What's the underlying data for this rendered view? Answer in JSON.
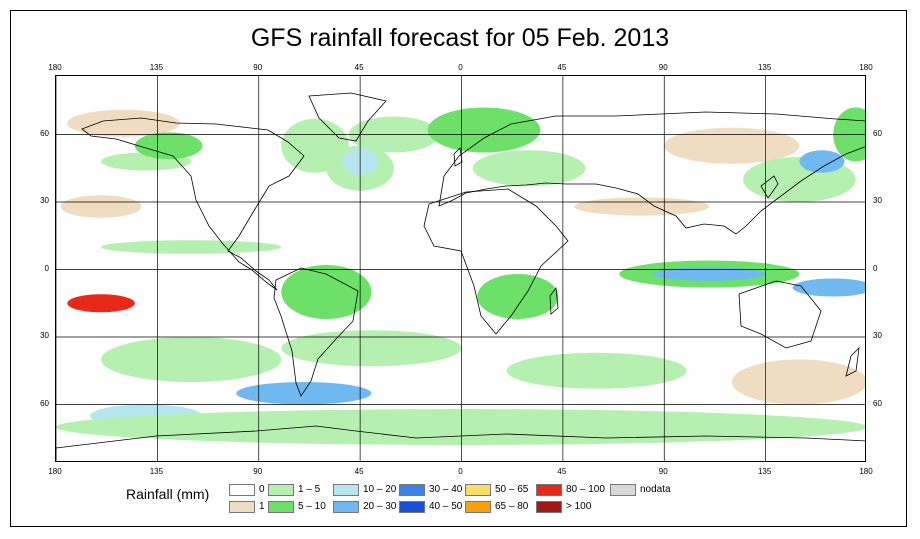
{
  "title": "GFS rainfall forecast for 05 Feb. 2013",
  "colors": {
    "land_outline": "#000000",
    "grid": "#000000"
  },
  "longitude_ticks": [
    {
      "lon": -180,
      "label": "180"
    },
    {
      "lon": -135,
      "label": "135"
    },
    {
      "lon": -90,
      "label": "90"
    },
    {
      "lon": -45,
      "label": "45"
    },
    {
      "lon": 0,
      "label": "0"
    },
    {
      "lon": 45,
      "label": "45"
    },
    {
      "lon": 90,
      "label": "90"
    },
    {
      "lon": 135,
      "label": "135"
    },
    {
      "lon": 180,
      "label": "180"
    }
  ],
  "latitude_ticks": [
    {
      "lat": 60,
      "label": "60"
    },
    {
      "lat": 30,
      "label": "30"
    },
    {
      "lat": 0,
      "label": "0"
    },
    {
      "lat": -30,
      "label": "30"
    },
    {
      "lat": -60,
      "label": "60"
    }
  ],
  "legend": {
    "title": "Rainfall (mm)",
    "items": [
      {
        "label": "0",
        "color": "#ffffff"
      },
      {
        "label": "1",
        "color": "#f0dcc0"
      },
      {
        "label": "1 – 5",
        "color": "#b6f0b0"
      },
      {
        "label": "5 – 10",
        "color": "#6de06a"
      },
      {
        "label": "10 – 20",
        "color": "#b5e6f0"
      },
      {
        "label": "20 – 30",
        "color": "#6fb8f0"
      },
      {
        "label": "30 – 40",
        "color": "#3c82e6"
      },
      {
        "label": "40 – 50",
        "color": "#1a4fd8"
      },
      {
        "label": "50 – 65",
        "color": "#f8de6a"
      },
      {
        "label": "65 – 80",
        "color": "#f8a010"
      },
      {
        "label": "80 – 100",
        "color": "#e82818"
      },
      {
        "label": "> 100",
        "color": "#a01818"
      },
      {
        "label": "nodata",
        "color": "#d8d8d8"
      }
    ]
  },
  "rain_features": [
    {
      "lon": -160,
      "lat": 28,
      "rx": 18,
      "ry": 5,
      "color": "#f0dcc0"
    },
    {
      "lon": -150,
      "lat": 65,
      "rx": 25,
      "ry": 6,
      "color": "#f0dcc0"
    },
    {
      "lon": -140,
      "lat": 48,
      "rx": 20,
      "ry": 4,
      "color": "#b6f0b0"
    },
    {
      "lon": -130,
      "lat": 55,
      "rx": 15,
      "ry": 6,
      "color": "#6de06a"
    },
    {
      "lon": -65,
      "lat": 55,
      "rx": 15,
      "ry": 12,
      "color": "#b6f0b0"
    },
    {
      "lon": -45,
      "lat": 45,
      "rx": 15,
      "ry": 10,
      "color": "#b6f0b0"
    },
    {
      "lon": -45,
      "lat": 48,
      "rx": 8,
      "ry": 6,
      "color": "#b5e6f0"
    },
    {
      "lon": -30,
      "lat": 60,
      "rx": 20,
      "ry": 8,
      "color": "#b6f0b0"
    },
    {
      "lon": 10,
      "lat": 62,
      "rx": 25,
      "ry": 10,
      "color": "#6de06a"
    },
    {
      "lon": 30,
      "lat": 45,
      "rx": 25,
      "ry": 8,
      "color": "#b6f0b0"
    },
    {
      "lon": 120,
      "lat": 55,
      "rx": 30,
      "ry": 8,
      "color": "#f0dcc0"
    },
    {
      "lon": 150,
      "lat": 40,
      "rx": 25,
      "ry": 10,
      "color": "#b6f0b0"
    },
    {
      "lon": 160,
      "lat": 48,
      "rx": 10,
      "ry": 5,
      "color": "#6fb8f0"
    },
    {
      "lon": 175,
      "lat": 60,
      "rx": 10,
      "ry": 12,
      "color": "#6de06a"
    },
    {
      "lon": 80,
      "lat": 28,
      "rx": 30,
      "ry": 4,
      "color": "#f0dcc0"
    },
    {
      "lon": -120,
      "lat": 10,
      "rx": 40,
      "ry": 3,
      "color": "#b6f0b0"
    },
    {
      "lon": -60,
      "lat": -10,
      "rx": 20,
      "ry": 12,
      "color": "#6de06a"
    },
    {
      "lon": 25,
      "lat": -12,
      "rx": 18,
      "ry": 10,
      "color": "#6de06a"
    },
    {
      "lon": 110,
      "lat": -2,
      "rx": 40,
      "ry": 6,
      "color": "#6de06a"
    },
    {
      "lon": 110,
      "lat": -2,
      "rx": 25,
      "ry": 3,
      "color": "#6fb8f0"
    },
    {
      "lon": 165,
      "lat": -8,
      "rx": 18,
      "ry": 4,
      "color": "#6fb8f0"
    },
    {
      "lon": -160,
      "lat": -15,
      "rx": 15,
      "ry": 4,
      "color": "#e82818"
    },
    {
      "lon": -120,
      "lat": -40,
      "rx": 40,
      "ry": 10,
      "color": "#b6f0b0"
    },
    {
      "lon": -40,
      "lat": -35,
      "rx": 40,
      "ry": 8,
      "color": "#b6f0b0"
    },
    {
      "lon": -70,
      "lat": -55,
      "rx": 30,
      "ry": 5,
      "color": "#6fb8f0"
    },
    {
      "lon": -140,
      "lat": -65,
      "rx": 25,
      "ry": 5,
      "color": "#b5e6f0"
    },
    {
      "lon": 60,
      "lat": -45,
      "rx": 40,
      "ry": 8,
      "color": "#b6f0b0"
    },
    {
      "lon": 150,
      "lat": -50,
      "rx": 30,
      "ry": 10,
      "color": "#f0dcc0"
    },
    {
      "lon": 0,
      "lat": -70,
      "rx": 180,
      "ry": 8,
      "color": "#b6f0b0"
    }
  ]
}
